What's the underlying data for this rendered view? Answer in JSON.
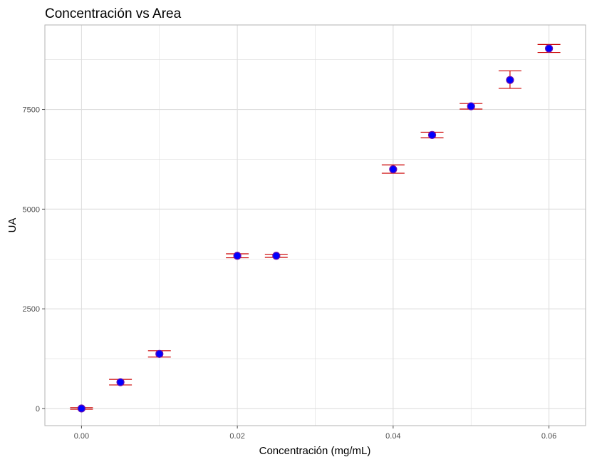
{
  "chart_data": {
    "type": "scatter",
    "title": "Concentración vs Area",
    "xlabel": "Concentración (mg/mL)",
    "ylabel": "UA",
    "xlim": [
      -0.0047,
      0.0647
    ],
    "ylim": [
      -430,
      9620
    ],
    "x_ticks": [
      0.0,
      0.02,
      0.04,
      0.06
    ],
    "x_tick_labels": [
      "0.00",
      "0.02",
      "0.04",
      "0.06"
    ],
    "x_minor_ticks": [
      0.01,
      0.03,
      0.05
    ],
    "y_ticks": [
      0,
      2500,
      5000,
      7500
    ],
    "y_tick_labels": [
      "0",
      "2500",
      "5000",
      "7500"
    ],
    "y_minor_ticks": [
      1250,
      3750,
      6250,
      8750
    ],
    "grid": true,
    "point_color": "#0000ff",
    "point_border_color": "#6a0dad",
    "errorbar_color": "#cc0000",
    "panel_border_color": "#b3b3b3",
    "grid_color": "#dedede",
    "points": [
      {
        "x": 0.0,
        "y": 0,
        "ymin": -20,
        "ymax": 20
      },
      {
        "x": 0.005,
        "y": 660,
        "ymin": 590,
        "ymax": 730
      },
      {
        "x": 0.01,
        "y": 1370,
        "ymin": 1290,
        "ymax": 1450
      },
      {
        "x": 0.02,
        "y": 3830,
        "ymin": 3780,
        "ymax": 3880
      },
      {
        "x": 0.025,
        "y": 3830,
        "ymin": 3790,
        "ymax": 3870
      },
      {
        "x": 0.04,
        "y": 6000,
        "ymin": 5900,
        "ymax": 6110
      },
      {
        "x": 0.045,
        "y": 6860,
        "ymin": 6790,
        "ymax": 6930
      },
      {
        "x": 0.05,
        "y": 7580,
        "ymin": 7510,
        "ymax": 7650
      },
      {
        "x": 0.055,
        "y": 8240,
        "ymin": 8030,
        "ymax": 8470
      },
      {
        "x": 0.06,
        "y": 9030,
        "ymin": 8930,
        "ymax": 9130
      }
    ]
  }
}
